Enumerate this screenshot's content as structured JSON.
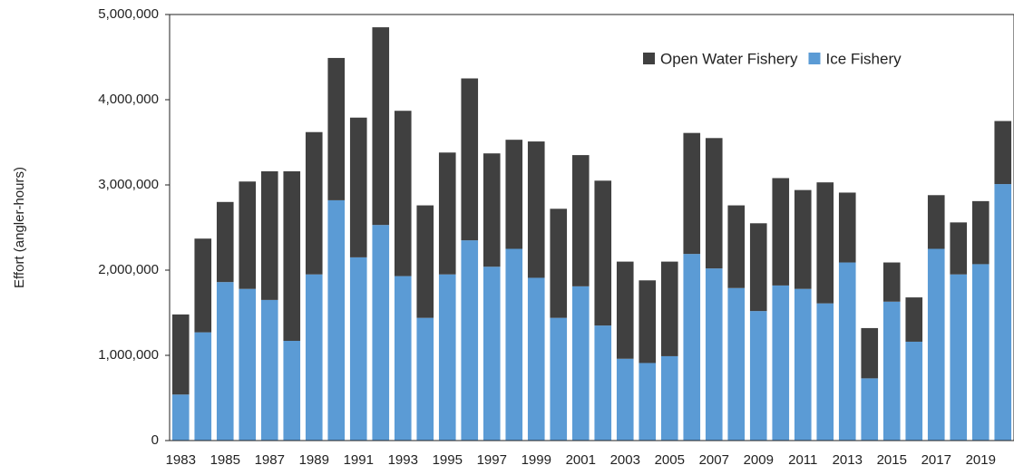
{
  "chart_data": {
    "type": "stacked-bar",
    "y_label": "Effort (angler-hours)",
    "categories": [
      "1983",
      null,
      "1985",
      null,
      "1987",
      null,
      "1989",
      null,
      "1991",
      null,
      "1993",
      null,
      "1995",
      null,
      "1997",
      null,
      "1999",
      null,
      "2001",
      null,
      "2003",
      null,
      "2005",
      null,
      "2007",
      null,
      "2009",
      null,
      "2011",
      null,
      "2013",
      null,
      "2015",
      null,
      "2017",
      null,
      "2019",
      null
    ],
    "series": [
      {
        "name": "Open Water Fishery",
        "color": "#404040",
        "values": [
          940000,
          1100000,
          940000,
          1260000,
          1510000,
          1990000,
          1670000,
          1670000,
          1640000,
          2320000,
          1940000,
          1320000,
          1430000,
          1900000,
          1330000,
          1280000,
          1600000,
          1280000,
          1540000,
          1700000,
          1140000,
          970000,
          1110000,
          1420000,
          1530000,
          970000,
          1030000,
          1260000,
          1160000,
          1420000,
          820000,
          590000,
          460000,
          520000,
          630000,
          610000,
          740000,
          740000
        ]
      },
      {
        "name": "Ice Fishery",
        "color": "#5b9bd5",
        "values": [
          540000,
          1270000,
          1860000,
          1780000,
          1650000,
          1170000,
          1950000,
          2820000,
          2150000,
          2530000,
          1930000,
          1440000,
          1950000,
          2350000,
          2040000,
          2250000,
          1910000,
          1440000,
          1810000,
          1350000,
          960000,
          910000,
          990000,
          2190000,
          2020000,
          1790000,
          1520000,
          1820000,
          1780000,
          1610000,
          2090000,
          730000,
          1630000,
          1160000,
          2250000,
          1950000,
          2070000,
          3010000
        ]
      }
    ],
    "ylim": [
      0,
      5000000
    ],
    "yticks": [
      0,
      {
        "value": 1000000,
        "label": "1,000,000"
      },
      {
        "value": 2000000,
        "label": "2,000,000"
      },
      {
        "value": 3000000,
        "label": "3,000,000"
      },
      {
        "value": 4000000,
        "label": "4,000,000"
      },
      {
        "value": 5000000,
        "label": "5,000,000"
      }
    ],
    "grid": false,
    "legend": "upper-right"
  }
}
